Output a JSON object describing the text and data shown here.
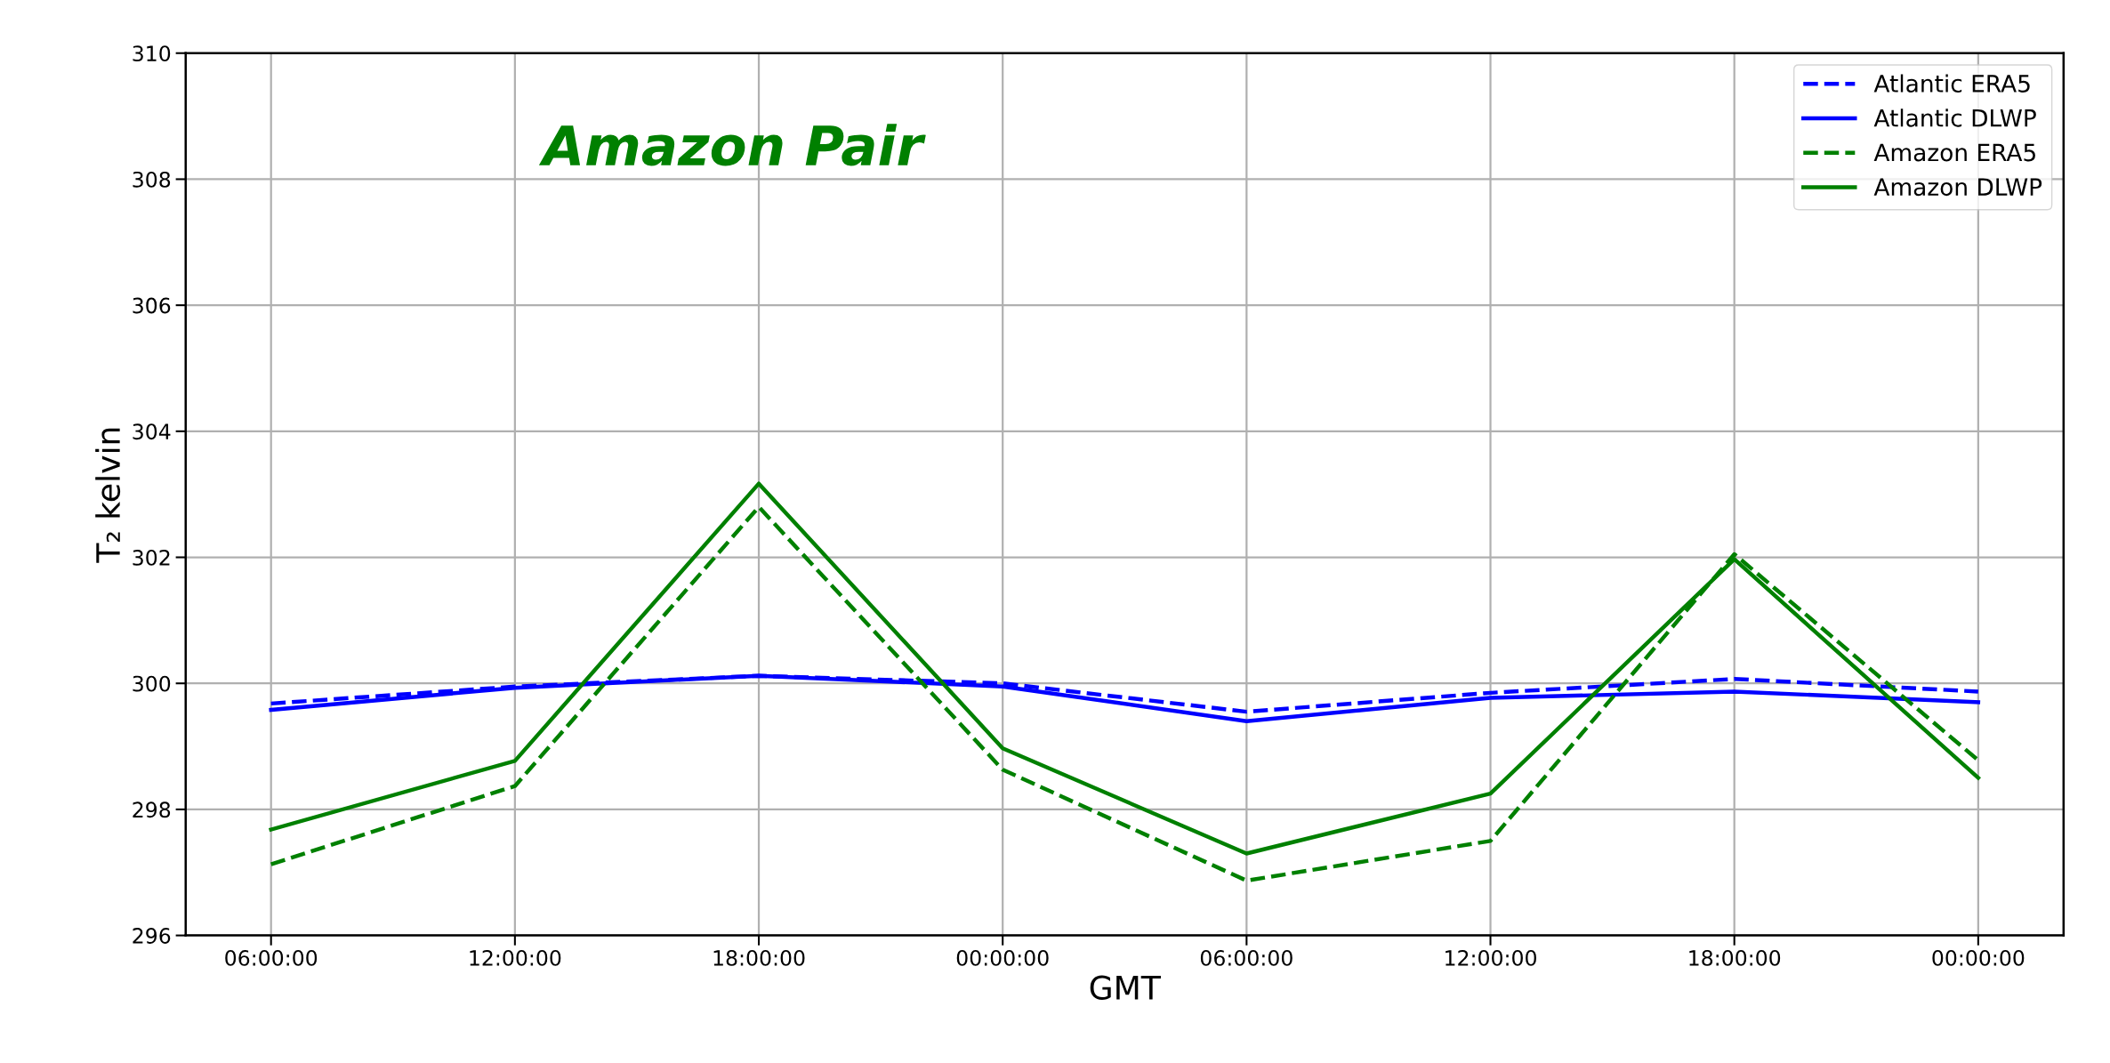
{
  "chart_data": {
    "type": "line",
    "title": "Amazon Pair",
    "xlabel": "GMT",
    "ylabel": "T₂ kelvin",
    "categories": [
      "06:00:00",
      "12:00:00",
      "18:00:00",
      "00:00:00",
      "06:00:00",
      "12:00:00",
      "18:00:00",
      "00:00:00"
    ],
    "series": [
      {
        "name": "Atlantic ERA5",
        "color": "#0000ff",
        "line_style": "dashed",
        "values": [
          299.68,
          299.95,
          300.12,
          300.0,
          299.55,
          299.85,
          300.07,
          299.87
        ]
      },
      {
        "name": "Atlantic DLWP",
        "color": "#0000ff",
        "line_style": "solid",
        "values": [
          299.58,
          299.93,
          300.12,
          299.95,
          299.4,
          299.77,
          299.87,
          299.7
        ]
      },
      {
        "name": "Amazon ERA5",
        "color": "#008000",
        "line_style": "dashed",
        "values": [
          297.13,
          298.37,
          302.8,
          298.63,
          296.87,
          297.5,
          302.05,
          298.78
        ]
      },
      {
        "name": "Amazon DLWP",
        "color": "#008000",
        "line_style": "solid",
        "values": [
          297.68,
          298.77,
          303.17,
          298.97,
          297.3,
          298.25,
          301.97,
          298.5
        ]
      }
    ],
    "ylim": [
      296,
      310
    ],
    "yticks": [
      296,
      298,
      300,
      302,
      304,
      306,
      308,
      310
    ],
    "grid": true,
    "legend": "top right",
    "marker": "none"
  }
}
